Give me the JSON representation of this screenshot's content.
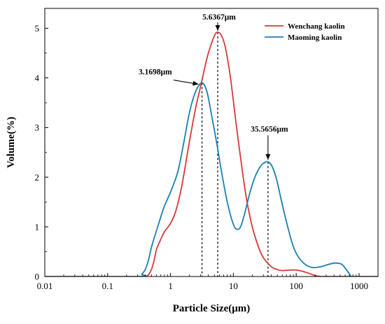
{
  "chart_data": {
    "type": "line",
    "xlabel": "Particle Size(μm)",
    "ylabel": "Volume(%)",
    "x_scale": "log",
    "xlim": [
      0.01,
      2000
    ],
    "ylim": [
      0,
      5.4
    ],
    "x_ticks": [
      {
        "value": 0.01,
        "label": "0.01"
      },
      {
        "value": 0.1,
        "label": "0.1"
      },
      {
        "value": 1,
        "label": "1"
      },
      {
        "value": 10,
        "label": "10"
      },
      {
        "value": 100,
        "label": "100"
      },
      {
        "value": 1000,
        "label": "1000"
      }
    ],
    "y_ticks": [
      {
        "value": 0,
        "label": "0"
      },
      {
        "value": 1,
        "label": "1"
      },
      {
        "value": 2,
        "label": "2"
      },
      {
        "value": 3,
        "label": "3"
      },
      {
        "value": 4,
        "label": "4"
      },
      {
        "value": 5,
        "label": "5"
      }
    ],
    "grid": false,
    "legend_position": "top-right",
    "series": [
      {
        "name": "Wenchang kaolin",
        "color": "#d8383a",
        "x": [
          0.01,
          0.3,
          0.4,
          0.45,
          0.5,
          0.55,
          0.6,
          0.7,
          0.8,
          1.0,
          1.2,
          1.5,
          2.0,
          2.5,
          3.0,
          3.5,
          4.0,
          5.0,
          5.6367,
          6.5,
          7.5,
          9.0,
          11,
          13,
          16,
          20,
          25,
          30,
          40,
          50,
          60,
          80,
          100,
          130,
          170,
          200,
          250,
          300,
          2000
        ],
        "y": [
          0,
          0,
          0,
          0.04,
          0.15,
          0.33,
          0.55,
          0.75,
          0.9,
          1.07,
          1.3,
          1.8,
          2.72,
          3.38,
          3.82,
          4.2,
          4.5,
          4.85,
          4.92,
          4.85,
          4.6,
          4.0,
          3.1,
          2.4,
          1.6,
          1.0,
          0.6,
          0.38,
          0.2,
          0.14,
          0.12,
          0.13,
          0.13,
          0.1,
          0.05,
          0.02,
          0,
          0,
          0
        ]
      },
      {
        "name": "Maoming kaolin",
        "color": "#1a7fb3",
        "x": [
          0.01,
          0.3,
          0.35,
          0.4,
          0.45,
          0.5,
          0.6,
          0.7,
          0.8,
          1.0,
          1.3,
          1.6,
          2.0,
          2.5,
          3.1698,
          3.8,
          4.5,
          5.5,
          6.5,
          8.0,
          10,
          11.5,
          13,
          15,
          18,
          22,
          27,
          32,
          35.5656,
          40,
          45,
          50,
          60,
          75,
          90,
          110,
          140,
          170,
          200,
          250,
          300,
          400,
          500,
          550,
          600,
          700,
          800,
          2000
        ],
        "y": [
          0,
          0,
          0.05,
          0.15,
          0.35,
          0.6,
          0.93,
          1.2,
          1.42,
          1.7,
          2.1,
          2.65,
          3.3,
          3.72,
          3.9,
          3.72,
          3.25,
          2.65,
          2.1,
          1.5,
          1.05,
          0.95,
          1.0,
          1.25,
          1.65,
          2.0,
          2.22,
          2.3,
          2.31,
          2.25,
          2.1,
          1.9,
          1.45,
          0.95,
          0.6,
          0.38,
          0.24,
          0.19,
          0.18,
          0.2,
          0.23,
          0.27,
          0.26,
          0.23,
          0.17,
          0.06,
          0,
          0
        ]
      }
    ],
    "annotations": [
      {
        "text": "5.6367μm",
        "x": 5.6367,
        "y": 4.92
      },
      {
        "text": "3.1698μm",
        "x": 3.1698,
        "y": 3.9
      },
      {
        "text": "35.5656μm",
        "x": 35.5656,
        "y": 2.31
      }
    ]
  }
}
